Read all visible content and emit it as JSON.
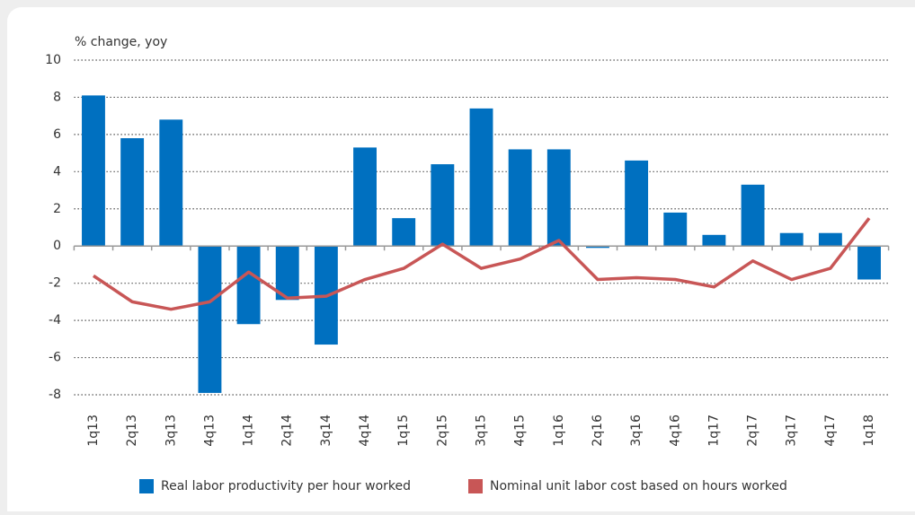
{
  "chart_data": {
    "type": "bar_line",
    "ylabel": "% change, yoy",
    "categories": [
      "1q13",
      "2q13",
      "3q13",
      "4q13",
      "1q14",
      "2q14",
      "3q14",
      "4q14",
      "1q15",
      "2q15",
      "3q15",
      "4q15",
      "1q16",
      "2q16",
      "3q16",
      "4q16",
      "1q17",
      "2q17",
      "3q17",
      "4q17",
      "1q18"
    ],
    "series": [
      {
        "name": "Real labor productivity per hour worked",
        "type": "bar",
        "color": "#0070c0",
        "values": [
          8.1,
          5.8,
          6.8,
          -7.9,
          -4.2,
          -2.9,
          -5.3,
          5.3,
          1.5,
          4.4,
          7.4,
          5.2,
          5.2,
          -0.1,
          4.6,
          1.8,
          0.6,
          3.3,
          0.7,
          0.7,
          -1.8
        ]
      },
      {
        "name": "Nominal unit labor cost based on hours worked",
        "type": "line",
        "color": "#c85656",
        "values": [
          -1.6,
          -3.0,
          -3.4,
          -3.0,
          -1.4,
          -2.8,
          -2.7,
          -1.8,
          -1.2,
          0.1,
          -1.2,
          -0.7,
          0.3,
          -1.8,
          -1.7,
          -1.8,
          -2.2,
          -0.8,
          -1.8,
          -1.2,
          1.5
        ]
      }
    ],
    "ylim": [
      -8,
      10
    ],
    "yticks": [
      -8,
      -6,
      -4,
      -2,
      0,
      2,
      4,
      6,
      8,
      10
    ],
    "grid": true,
    "legend": "bottom"
  }
}
